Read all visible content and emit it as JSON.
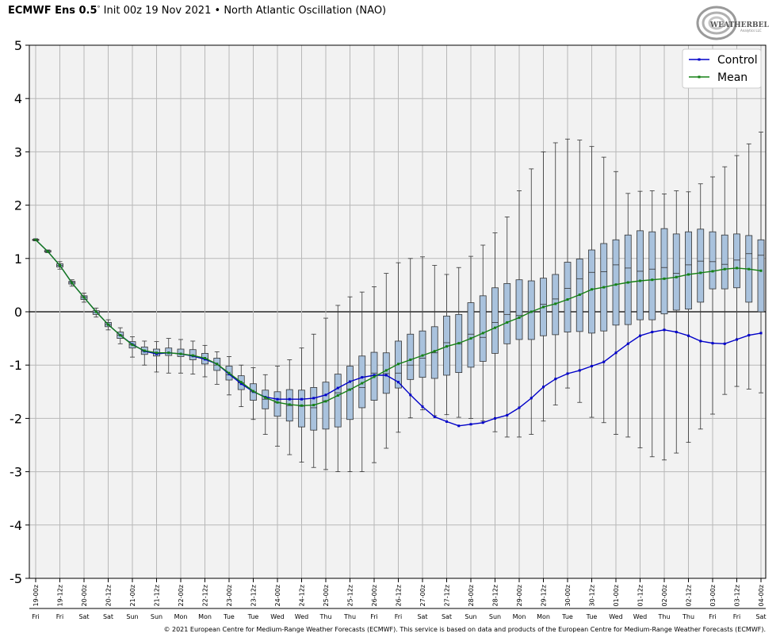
{
  "header": {
    "model": "ECMWF Ens 0.5",
    "degree": "°",
    "init": "Init 00z 19 Nov 2021",
    "bullet": "•",
    "title": "North Atlantic Oscillation (NAO)"
  },
  "logo": {
    "text": "WEATHERBELL",
    "subtext": "Analytics LLC"
  },
  "footer": "© 2021 European Centre for Medium-Range Weather Forecasts (ECMWF). This service is based on data and products of the European Centre for Medium-Range Weather Forecasts (ECMWF).",
  "colors": {
    "control": "#0000c8",
    "mean": "#158015",
    "box_fill": "#a9c2dd",
    "plot_bg": "#f2f2f2",
    "grid": "#b8b8b8"
  },
  "chart_data": {
    "type": "box",
    "xlabel": "",
    "ylabel": "",
    "ylim": [
      -5,
      5
    ],
    "yticks": [
      5,
      4,
      3,
      2,
      1,
      0,
      -1,
      -2,
      -3,
      -4,
      -5
    ],
    "grid": true,
    "legend_position": "top-right",
    "x_labels": [
      "19-00z",
      "19-12z",
      "20-00z",
      "20-12z",
      "21-00z",
      "21-12z",
      "22-00z",
      "22-12z",
      "23-00z",
      "23-12z",
      "24-00z",
      "24-12z",
      "25-00z",
      "25-12z",
      "26-00z",
      "26-12z",
      "27-00z",
      "27-12z",
      "28-00z",
      "28-12z",
      "29-00z",
      "29-12z",
      "30-00z",
      "30-12z",
      "01-00z",
      "01-12z",
      "02-00z",
      "02-12z",
      "03-00z",
      "03-12z",
      "04-00z"
    ],
    "x_days": [
      "Fri",
      "Fri",
      "Sat",
      "Sat",
      "Sun",
      "Sun",
      "Mon",
      "Mon",
      "Tue",
      "Tue",
      "Wed",
      "Wed",
      "Thu",
      "Thu",
      "Fri",
      "Fri",
      "Sat",
      "Sat",
      "Sun",
      "Sun",
      "Mon",
      "Mon",
      "Tue",
      "Tue",
      "Wed",
      "Wed",
      "Thu",
      "Thu",
      "Fri",
      "Fri",
      "Sat"
    ],
    "boxes": [
      {
        "min": 1.33,
        "q1": 1.34,
        "median": 1.35,
        "q3": 1.36,
        "max": 1.37
      },
      {
        "min": 1.11,
        "q1": 1.12,
        "median": 1.13,
        "q3": 1.15,
        "max": 1.16
      },
      {
        "min": 0.8,
        "q1": 0.84,
        "median": 0.87,
        "q3": 0.9,
        "max": 0.94
      },
      {
        "min": 0.48,
        "q1": 0.52,
        "median": 0.55,
        "q3": 0.57,
        "max": 0.6
      },
      {
        "min": 0.18,
        "q1": 0.23,
        "median": 0.27,
        "q3": 0.3,
        "max": 0.35
      },
      {
        "min": -0.1,
        "q1": -0.05,
        "median": -0.01,
        "q3": 0.02,
        "max": 0.07
      },
      {
        "min": -0.34,
        "q1": -0.28,
        "median": -0.24,
        "q3": -0.2,
        "max": -0.15
      },
      {
        "min": -0.6,
        "q1": -0.5,
        "median": -0.44,
        "q3": -0.38,
        "max": -0.3
      },
      {
        "min": -0.85,
        "q1": -0.68,
        "median": -0.62,
        "q3": -0.56,
        "max": -0.47
      },
      {
        "min": -1.0,
        "q1": -0.8,
        "median": -0.74,
        "q3": -0.66,
        "max": -0.55
      },
      {
        "min": -1.13,
        "q1": -0.83,
        "median": -0.78,
        "q3": -0.7,
        "max": -0.56
      },
      {
        "min": -1.15,
        "q1": -0.82,
        "median": -0.77,
        "q3": -0.68,
        "max": -0.5
      },
      {
        "min": -1.15,
        "q1": -0.84,
        "median": -0.79,
        "q3": -0.7,
        "max": -0.52
      },
      {
        "min": -1.17,
        "q1": -0.9,
        "median": -0.82,
        "q3": -0.71,
        "max": -0.55
      },
      {
        "min": -1.22,
        "q1": -0.98,
        "median": -0.88,
        "q3": -0.78,
        "max": -0.63
      },
      {
        "min": -1.36,
        "q1": -1.1,
        "median": -1.0,
        "q3": -0.87,
        "max": -0.75
      },
      {
        "min": -1.56,
        "q1": -1.28,
        "median": -1.18,
        "q3": -1.02,
        "max": -0.84
      },
      {
        "min": -1.78,
        "q1": -1.46,
        "median": -1.33,
        "q3": -1.2,
        "max": -1.0
      },
      {
        "min": -2.02,
        "q1": -1.66,
        "median": -1.5,
        "q3": -1.35,
        "max": -1.05
      },
      {
        "min": -2.3,
        "q1": -1.82,
        "median": -1.64,
        "q3": -1.47,
        "max": -1.18
      },
      {
        "min": -2.52,
        "q1": -1.96,
        "median": -1.7,
        "q3": -1.5,
        "max": -1.02
      },
      {
        "min": -2.68,
        "q1": -2.05,
        "median": -1.76,
        "q3": -1.46,
        "max": -0.9
      },
      {
        "min": -2.82,
        "q1": -2.16,
        "median": -1.77,
        "q3": -1.47,
        "max": -0.68
      },
      {
        "min": -2.92,
        "q1": -2.22,
        "median": -1.8,
        "q3": -1.42,
        "max": -0.42
      },
      {
        "min": -2.96,
        "q1": -2.2,
        "median": -1.67,
        "q3": -1.32,
        "max": -0.12
      },
      {
        "min": -3.0,
        "q1": -2.16,
        "median": -1.52,
        "q3": -1.17,
        "max": 0.12
      },
      {
        "min": -3.0,
        "q1": -2.02,
        "median": -1.45,
        "q3": -1.02,
        "max": 0.28
      },
      {
        "min": -3.0,
        "q1": -1.8,
        "median": -1.42,
        "q3": -0.83,
        "max": 0.37
      },
      {
        "min": -2.83,
        "q1": -1.66,
        "median": -1.15,
        "q3": -0.76,
        "max": 0.47
      },
      {
        "min": -2.56,
        "q1": -1.53,
        "median": -1.16,
        "q3": -0.77,
        "max": 0.72
      },
      {
        "min": -2.26,
        "q1": -1.43,
        "median": -1.15,
        "q3": -0.55,
        "max": 0.92
      },
      {
        "min": -1.99,
        "q1": -1.27,
        "median": -1.0,
        "q3": -0.42,
        "max": 1.0
      },
      {
        "min": -1.84,
        "q1": -1.23,
        "median": -0.87,
        "q3": -0.36,
        "max": 1.03
      },
      {
        "min": -1.95,
        "q1": -1.25,
        "median": -0.77,
        "q3": -0.28,
        "max": 0.87
      },
      {
        "min": -1.93,
        "q1": -1.19,
        "median": -0.58,
        "q3": -0.08,
        "max": 0.7
      },
      {
        "min": -1.98,
        "q1": -1.14,
        "median": -0.6,
        "q3": -0.05,
        "max": 0.83
      },
      {
        "min": -2.0,
        "q1": -1.04,
        "median": -0.42,
        "q3": 0.17,
        "max": 1.04
      },
      {
        "min": -2.05,
        "q1": -0.93,
        "median": -0.48,
        "q3": 0.3,
        "max": 1.25
      },
      {
        "min": -2.25,
        "q1": -0.78,
        "median": -0.2,
        "q3": 0.45,
        "max": 1.48
      },
      {
        "min": -2.35,
        "q1": -0.6,
        "median": -0.05,
        "q3": 0.53,
        "max": 1.78
      },
      {
        "min": -2.35,
        "q1": -0.52,
        "median": -0.07,
        "q3": 0.6,
        "max": 2.27
      },
      {
        "min": -2.3,
        "q1": -0.52,
        "median": 0.0,
        "q3": 0.58,
        "max": 2.68
      },
      {
        "min": -2.05,
        "q1": -0.45,
        "median": 0.14,
        "q3": 0.63,
        "max": 3.0
      },
      {
        "min": -1.75,
        "q1": -0.43,
        "median": 0.24,
        "q3": 0.7,
        "max": 3.17
      },
      {
        "min": -1.43,
        "q1": -0.38,
        "median": 0.44,
        "q3": 0.93,
        "max": 3.24
      },
      {
        "min": -1.7,
        "q1": -0.37,
        "median": 0.62,
        "q3": 0.99,
        "max": 3.22
      },
      {
        "min": -1.98,
        "q1": -0.4,
        "median": 0.74,
        "q3": 1.16,
        "max": 3.1
      },
      {
        "min": -2.08,
        "q1": -0.36,
        "median": 0.75,
        "q3": 1.28,
        "max": 2.9
      },
      {
        "min": -2.3,
        "q1": -0.25,
        "median": 0.88,
        "q3": 1.35,
        "max": 2.63
      },
      {
        "min": -2.35,
        "q1": -0.24,
        "median": 0.82,
        "q3": 1.44,
        "max": 2.22
      },
      {
        "min": -2.55,
        "q1": -0.15,
        "median": 0.76,
        "q3": 1.52,
        "max": 2.26
      },
      {
        "min": -2.72,
        "q1": -0.15,
        "median": 0.8,
        "q3": 1.5,
        "max": 2.27
      },
      {
        "min": -2.78,
        "q1": -0.04,
        "median": 0.83,
        "q3": 1.56,
        "max": 2.21
      },
      {
        "min": -2.65,
        "q1": 0.03,
        "median": 0.72,
        "q3": 1.46,
        "max": 2.27
      },
      {
        "min": -2.45,
        "q1": 0.05,
        "median": 0.88,
        "q3": 1.5,
        "max": 2.25
      },
      {
        "min": -2.2,
        "q1": 0.18,
        "median": 0.95,
        "q3": 1.55,
        "max": 2.4
      },
      {
        "min": -1.92,
        "q1": 0.43,
        "median": 0.94,
        "q3": 1.5,
        "max": 2.53
      },
      {
        "min": -1.55,
        "q1": 0.43,
        "median": 0.89,
        "q3": 1.44,
        "max": 2.72
      },
      {
        "min": -1.4,
        "q1": 0.45,
        "median": 0.97,
        "q3": 1.46,
        "max": 2.93
      },
      {
        "min": -1.45,
        "q1": 0.18,
        "median": 1.09,
        "q3": 1.43,
        "max": 3.15
      },
      {
        "min": -1.52,
        "q1": 0.0,
        "median": 1.06,
        "q3": 1.35,
        "max": 3.37
      }
    ],
    "series": [
      {
        "name": "Control",
        "values": [
          1.35,
          1.13,
          0.87,
          0.54,
          0.27,
          0.0,
          -0.24,
          -0.44,
          -0.61,
          -0.74,
          -0.79,
          -0.77,
          -0.79,
          -0.83,
          -0.89,
          -0.98,
          -1.17,
          -1.35,
          -1.5,
          -1.6,
          -1.64,
          -1.64,
          -1.64,
          -1.62,
          -1.56,
          -1.43,
          -1.31,
          -1.23,
          -1.19,
          -1.19,
          -1.32,
          -1.56,
          -1.78,
          -1.97,
          -2.06,
          -2.14,
          -2.11,
          -2.08,
          -2.0,
          -1.94,
          -1.8,
          -1.62,
          -1.41,
          -1.26,
          -1.16,
          -1.1,
          -1.02,
          -0.94,
          -0.77,
          -0.6,
          -0.45,
          -0.38,
          -0.34,
          -0.38,
          -0.45,
          -0.55,
          -0.59,
          -0.6,
          -0.52,
          -0.44,
          -0.4
        ]
      },
      {
        "name": "Mean",
        "values": [
          1.35,
          1.13,
          0.87,
          0.54,
          0.27,
          0.0,
          -0.24,
          -0.44,
          -0.62,
          -0.73,
          -0.77,
          -0.77,
          -0.79,
          -0.82,
          -0.87,
          -0.98,
          -1.15,
          -1.32,
          -1.49,
          -1.61,
          -1.7,
          -1.74,
          -1.76,
          -1.75,
          -1.68,
          -1.57,
          -1.46,
          -1.34,
          -1.22,
          -1.1,
          -0.98,
          -0.9,
          -0.82,
          -0.74,
          -0.65,
          -0.59,
          -0.5,
          -0.4,
          -0.3,
          -0.2,
          -0.11,
          0.0,
          0.09,
          0.15,
          0.23,
          0.32,
          0.42,
          0.46,
          0.51,
          0.55,
          0.58,
          0.6,
          0.62,
          0.65,
          0.7,
          0.73,
          0.76,
          0.8,
          0.82,
          0.8,
          0.77
        ]
      }
    ]
  }
}
